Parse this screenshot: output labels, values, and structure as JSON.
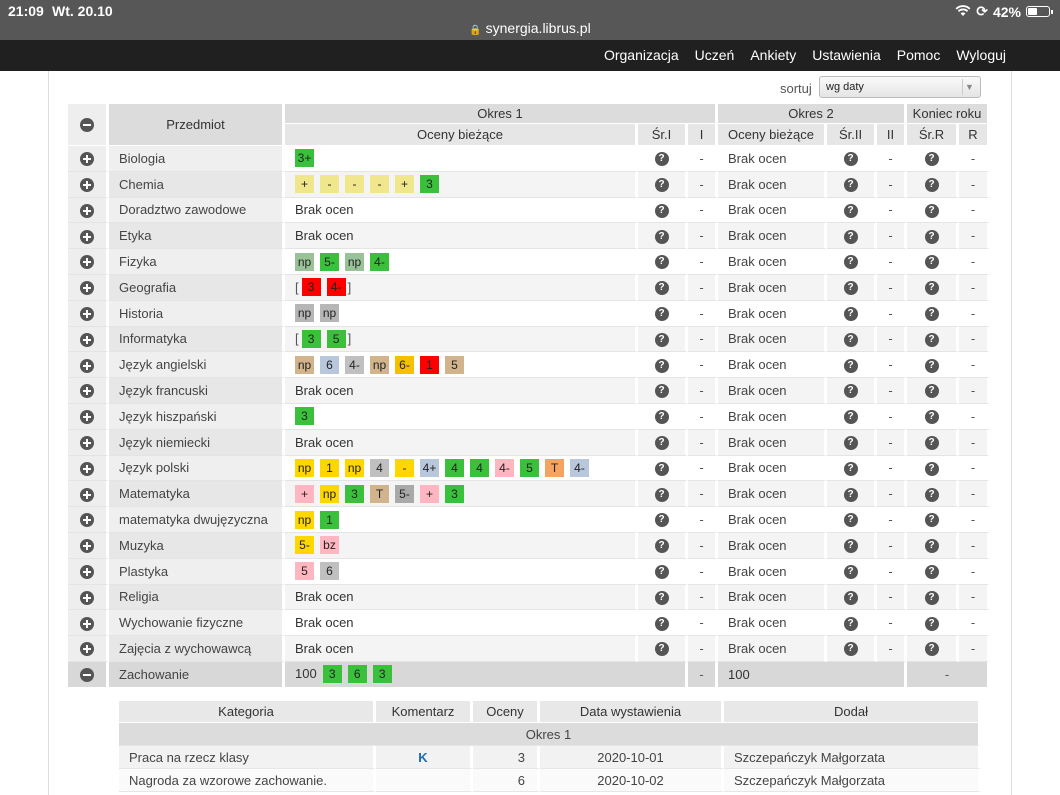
{
  "status_bar": {
    "time": "21:09",
    "date": "Wt. 20.10",
    "url": "synergia.librus.pl",
    "battery": "42%"
  },
  "nav": [
    "Organizacja",
    "Uczeń",
    "Ankiety",
    "Ustawienia",
    "Pomoc",
    "Wyloguj"
  ],
  "sort": {
    "label": "sortuj",
    "value": "wg daty"
  },
  "table_head": {
    "subject": "Przedmiot",
    "period1": "Okres 1",
    "period2": "Okres 2",
    "year_end": "Koniec roku",
    "current_grades": "Oceny bieżące",
    "avg1": "Śr.I",
    "final1": "I",
    "avg2": "Śr.II",
    "final2": "II",
    "avgR": "Śr.R",
    "finalR": "R"
  },
  "no_grades": "Brak ocen",
  "dash": "-",
  "grade_colors": {
    "green": "#3bc03b",
    "lightgreen": "#99c299",
    "gray": "#b6b6b6",
    "yellow": "#f0e68c",
    "red": "#ff0000",
    "lightblue": "#b8c7dc",
    "tan": "#d2b48c",
    "gold": "#f5c000",
    "orange": "#f4a460",
    "brightyellow": "#ffd700",
    "pink": "#ffb6c1",
    "darkgray": "#a9a9a9",
    "mediumgray": "#c0c0c0"
  },
  "subjects": [
    {
      "name": "Biologia",
      "grades": [
        {
          "v": "3+",
          "c": "green"
        }
      ]
    },
    {
      "name": "Chemia",
      "grades": [
        {
          "v": "+",
          "c": "yellow"
        },
        {
          "v": "-",
          "c": "yellow"
        },
        {
          "v": "-",
          "c": "yellow"
        },
        {
          "v": "-",
          "c": "yellow"
        },
        {
          "v": "+",
          "c": "yellow"
        },
        {
          "v": "3",
          "c": "green"
        }
      ]
    },
    {
      "name": "Doradztwo zawodowe",
      "grades": []
    },
    {
      "name": "Etyka",
      "grades": []
    },
    {
      "name": "Fizyka",
      "grades": [
        {
          "v": "np",
          "c": "lightgreen"
        },
        {
          "v": "5-",
          "c": "green"
        },
        {
          "v": "np",
          "c": "lightgreen"
        },
        {
          "v": "4-",
          "c": "green"
        }
      ]
    },
    {
      "name": "Geografia",
      "bracket": true,
      "grades": [
        {
          "v": "3",
          "c": "red"
        },
        {
          "v": "4-",
          "c": "red"
        }
      ]
    },
    {
      "name": "Historia",
      "grades": [
        {
          "v": "np",
          "c": "gray"
        },
        {
          "v": "np",
          "c": "gray"
        }
      ]
    },
    {
      "name": "Informatyka",
      "bracket": true,
      "grades": [
        {
          "v": "3",
          "c": "green"
        },
        {
          "v": "5",
          "c": "green"
        }
      ]
    },
    {
      "name": "Język angielski",
      "grades": [
        {
          "v": "np",
          "c": "tan"
        },
        {
          "v": "6",
          "c": "lightblue"
        },
        {
          "v": "4-",
          "c": "mediumgray"
        },
        {
          "v": "np",
          "c": "tan"
        },
        {
          "v": "6-",
          "c": "gold"
        },
        {
          "v": "1",
          "c": "red"
        },
        {
          "v": "5",
          "c": "tan"
        }
      ]
    },
    {
      "name": "Język francuski",
      "grades": []
    },
    {
      "name": "Język hiszpański",
      "grades": [
        {
          "v": "3",
          "c": "green"
        }
      ]
    },
    {
      "name": "Język niemiecki",
      "grades": []
    },
    {
      "name": "Język polski",
      "grades": [
        {
          "v": "np",
          "c": "brightyellow"
        },
        {
          "v": "1",
          "c": "brightyellow"
        },
        {
          "v": "np",
          "c": "brightyellow"
        },
        {
          "v": "4",
          "c": "mediumgray"
        },
        {
          "v": "-",
          "c": "brightyellow"
        },
        {
          "v": "4+",
          "c": "lightblue"
        },
        {
          "v": "4",
          "c": "green"
        },
        {
          "v": "4",
          "c": "green"
        },
        {
          "v": "4-",
          "c": "pink"
        },
        {
          "v": "5",
          "c": "green"
        },
        {
          "v": "T",
          "c": "orange"
        },
        {
          "v": "4-",
          "c": "lightblue"
        }
      ]
    },
    {
      "name": "Matematyka",
      "grades": [
        {
          "v": "+",
          "c": "pink"
        },
        {
          "v": "np",
          "c": "brightyellow"
        },
        {
          "v": "3",
          "c": "green"
        },
        {
          "v": "T",
          "c": "tan"
        },
        {
          "v": "5-",
          "c": "darkgray"
        },
        {
          "v": "+",
          "c": "pink"
        },
        {
          "v": "3",
          "c": "green"
        }
      ]
    },
    {
      "name": "matematyka dwujęzyczna",
      "grades": [
        {
          "v": "np",
          "c": "brightyellow"
        },
        {
          "v": "1",
          "c": "green"
        }
      ]
    },
    {
      "name": "Muzyka",
      "grades": [
        {
          "v": "5-",
          "c": "brightyellow"
        },
        {
          "v": "bz",
          "c": "pink"
        }
      ]
    },
    {
      "name": "Plastyka",
      "grades": [
        {
          "v": "5",
          "c": "pink"
        },
        {
          "v": "6",
          "c": "mediumgray"
        }
      ]
    },
    {
      "name": "Religia",
      "grades": []
    },
    {
      "name": "Wychowanie fizyczne",
      "grades": []
    },
    {
      "name": "Zajęcia z wychowawcą",
      "grades": []
    }
  ],
  "behaviour": {
    "name": "Zachowanie",
    "points1": "100",
    "grades": [
      {
        "v": "3",
        "c": "green"
      },
      {
        "v": "6",
        "c": "green"
      },
      {
        "v": "3",
        "c": "green"
      }
    ],
    "final1": "-",
    "points2": "100",
    "year": "-"
  },
  "behaviour_details": {
    "headers": {
      "category": "Kategoria",
      "comment": "Komentarz",
      "grades": "Oceny",
      "date": "Data wystawienia",
      "added_by": "Dodał"
    },
    "period": "Okres 1",
    "rows": [
      {
        "category": "Praca na rzecz klasy",
        "comment": "K",
        "grade": "3",
        "date": "2020-10-01",
        "added_by": "Szczepańczyk Małgorzata"
      },
      {
        "category": "Nagroda za wzorowe zachowanie.",
        "comment": "",
        "grade": "6",
        "date": "2020-10-02",
        "added_by": "Szczepańczyk Małgorzata"
      }
    ]
  }
}
